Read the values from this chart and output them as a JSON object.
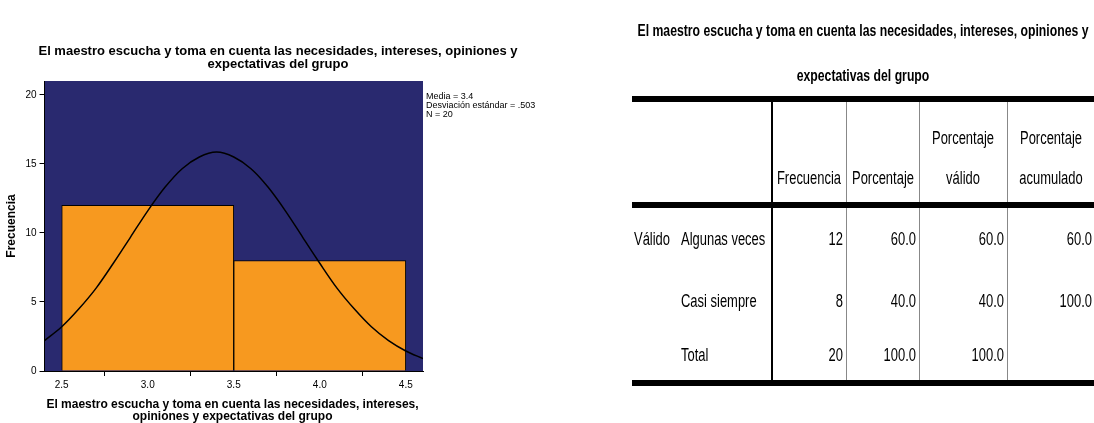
{
  "chart_data": [
    {
      "type": "histogram",
      "title": "El maestro escucha y toma en cuenta las necesidades, intereses, opiniones y expectativas del grupo",
      "xlabel": "El maestro escucha y toma en cuenta las necesidades, intereses, opiniones y expectativas del grupo",
      "ylabel": "Frecuencia",
      "bins": [
        2.5,
        3.5,
        4.5
      ],
      "values": [
        12,
        8
      ],
      "color": "#f7991f",
      "series": [
        {
          "type": "line",
          "color": "#000000",
          "x": [
            2.4,
            2.5,
            2.6,
            2.7,
            2.8,
            2.9,
            3.0,
            3.1,
            3.2,
            3.3,
            3.4,
            3.5,
            3.6,
            3.7,
            3.8,
            3.9,
            4.0,
            4.1,
            4.2,
            4.3,
            4.4,
            4.5,
            4.6
          ],
          "values": [
            2.2,
            3.2,
            4.5,
            6.0,
            7.8,
            9.7,
            11.6,
            13.3,
            14.65,
            15.5,
            15.85,
            15.5,
            14.65,
            13.3,
            11.6,
            9.7,
            7.8,
            6.0,
            4.5,
            3.2,
            2.2,
            1.45,
            0.9
          ]
        }
      ],
      "xlim": [
        2.4,
        4.6
      ],
      "xticks": [
        2.5,
        {
          "value": 3,
          "label": "3.0"
        },
        3.5,
        {
          "value": 4,
          "label": "4.0"
        },
        4.5
      ],
      "ylim": [
        0,
        21
      ],
      "yticks": [
        0,
        5,
        10,
        15,
        20
      ],
      "grid": false,
      "legend": false,
      "marker": "none",
      "annotations": [
        "Media = 3.4",
        "Desviación estándar = .503",
        "N = 20"
      ]
    },
    {
      "type": "other",
      "title": "El maestro escucha y toma en cuenta las necesidades, intereses, opiniones y expectativas del grupo",
      "annotations": [
        "Frecuencia",
        "Porcentaje",
        "Porcentaje válido",
        "Porcentaje acumulado",
        "Válido",
        "Algunas veces",
        "12",
        "60.0",
        "60.0",
        "60.0",
        "Casi siempre",
        "8",
        "40.0",
        "40.0",
        "100.0",
        "Total",
        "20",
        "100.0",
        "100.0"
      ]
    }
  ]
}
